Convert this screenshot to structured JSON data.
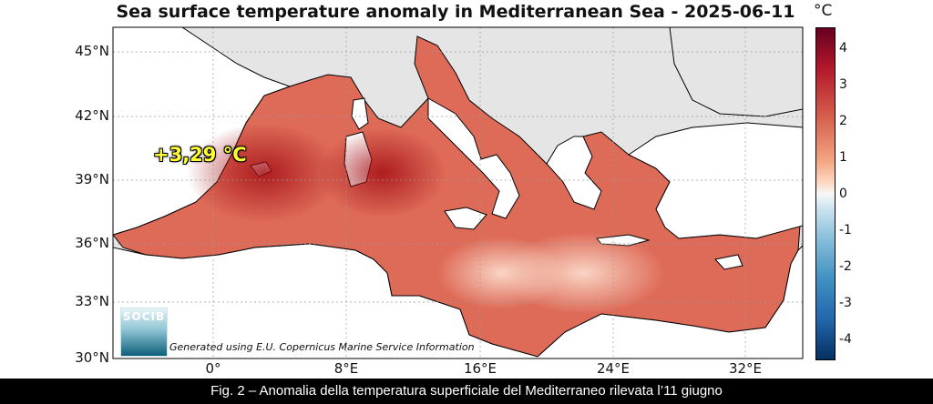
{
  "title": "Sea surface temperature anomaly in Mediterranean Sea - 2025-06-11",
  "colorbar": {
    "unit": "°C",
    "ticks": [
      "4",
      "3",
      "2",
      "1",
      "0",
      "-1",
      "-2",
      "-3",
      "-4"
    ],
    "range": [
      -4.5,
      4.5
    ],
    "colormap": "RdBu_r"
  },
  "axes": {
    "lat_ticks": [
      "45°N",
      "42°N",
      "39°N",
      "36°N",
      "33°N",
      "30°N"
    ],
    "lon_ticks": [
      "0°",
      "8°E",
      "16°E",
      "24°E",
      "32°E"
    ],
    "lat_range": [
      30,
      46
    ],
    "lon_range": [
      -6,
      36
    ],
    "grid": true
  },
  "annotation": {
    "text": "+3,29 °C"
  },
  "logo": {
    "text": "SOCIB"
  },
  "credit": "Generated using E.U. Copernicus Marine Service Information",
  "caption": "Fig. 2 – Anomalia della temperatura superficiale del Mediterraneo rilevata l’11 giugno",
  "colors": {
    "land": "#ffffff",
    "no_data": "#e5e5e5",
    "sea_warm": "#d6604d",
    "sea_hot": "#a50f15",
    "sea_mild": "#f4a582"
  }
}
